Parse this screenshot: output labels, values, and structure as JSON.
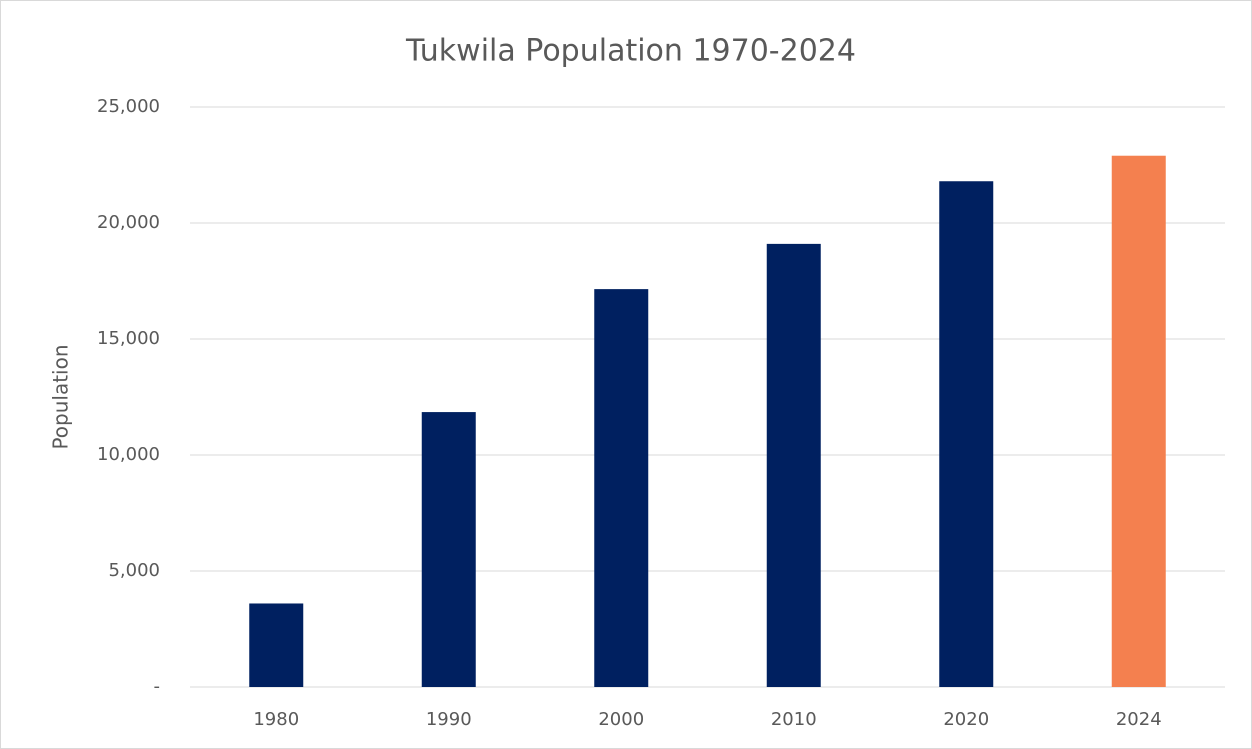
{
  "chart_data": {
    "type": "bar",
    "title": "Tukwila Population 1970-2024",
    "y_label": "Population",
    "categories": [
      "1980",
      "1990",
      "2000",
      "2010",
      "2020",
      "2024"
    ],
    "values": [
      3600,
      11850,
      17150,
      19100,
      21800,
      22900
    ],
    "colors": [
      "#002060",
      "#002060",
      "#002060",
      "#002060",
      "#002060",
      "#f4804f"
    ],
    "ylim": [
      0,
      25000
    ],
    "yticks": [
      {
        "value": 0,
        "label": "-"
      },
      {
        "value": 5000,
        "label": "5,000"
      },
      {
        "value": 10000,
        "label": "10,000"
      },
      {
        "value": 15000,
        "label": "15,000"
      },
      {
        "value": 20000,
        "label": "20,000"
      },
      {
        "value": 25000,
        "label": "25,000"
      }
    ],
    "grid": true
  }
}
